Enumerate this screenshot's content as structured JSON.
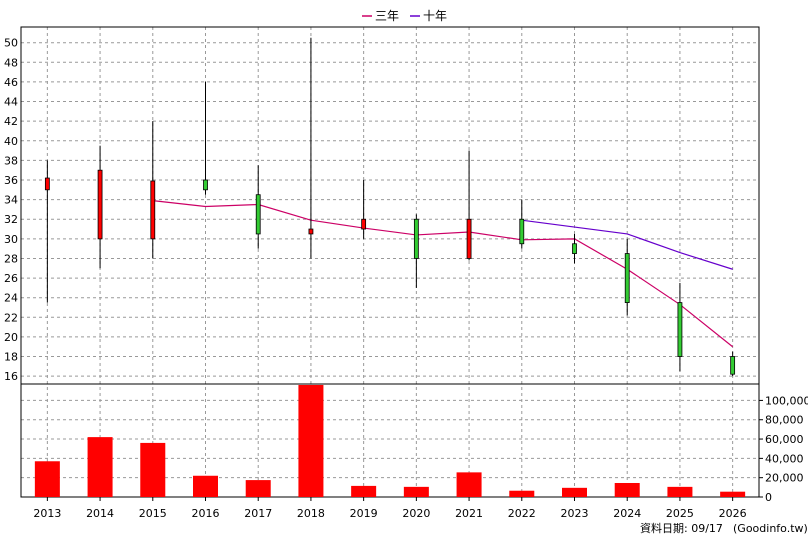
{
  "chart_data": {
    "type": "candlestick",
    "legend": [
      {
        "name": "三年",
        "color": "#cc0066"
      },
      {
        "name": "十年",
        "color": "#6600cc"
      }
    ],
    "legend_position": "top-center",
    "categories": [
      "2013",
      "2014",
      "2015",
      "2016",
      "2017",
      "2018",
      "2019",
      "2020",
      "2021",
      "2022",
      "2023",
      "2024",
      "2025",
      "2026"
    ],
    "price_axis": {
      "ticks": [
        16,
        18,
        20,
        22,
        24,
        26,
        28,
        30,
        32,
        34,
        36,
        38,
        40,
        42,
        44,
        46,
        48,
        50
      ],
      "range": [
        15.2,
        51.6
      ]
    },
    "volume_axis": {
      "ticks": [
        0,
        20000,
        40000,
        60000,
        80000,
        100000
      ],
      "tick_labels": [
        "0",
        "20,000",
        "40,000",
        "60,000",
        "80,000",
        "100,000"
      ],
      "range": [
        0,
        117000
      ]
    },
    "grid": true,
    "up_color": "#33cc33",
    "down_color": "#ff0000",
    "candles": [
      {
        "year": "2013",
        "open": 35.0,
        "close": 36.2,
        "high": 38.0,
        "low": 23.5
      },
      {
        "year": "2014",
        "open": 30.0,
        "close": 37.0,
        "high": 39.5,
        "low": 27.0
      },
      {
        "year": "2015",
        "open": 30.0,
        "close": 35.9,
        "high": 42.0,
        "low": 28.0
      },
      {
        "year": "2016",
        "open": 36.0,
        "close": 35.0,
        "high": 46.0,
        "low": 34.5
      },
      {
        "year": "2017",
        "open": 34.5,
        "close": 30.5,
        "high": 37.5,
        "low": 29.0
      },
      {
        "year": "2018",
        "open": 30.5,
        "close": 31.0,
        "high": 50.5,
        "low": 28.0
      },
      {
        "year": "2019",
        "open": 31.0,
        "close": 32.0,
        "high": 36.0,
        "low": 30.0
      },
      {
        "year": "2020",
        "open": 32.0,
        "close": 28.0,
        "high": 32.5,
        "low": 25.0
      },
      {
        "year": "2021",
        "open": 28.0,
        "close": 32.0,
        "high": 39.0,
        "low": 27.8
      },
      {
        "year": "2022",
        "open": 32.0,
        "close": 29.5,
        "high": 34.0,
        "low": 29.0
      },
      {
        "year": "2023",
        "open": 29.5,
        "close": 28.5,
        "high": 30.5,
        "low": 27.5
      },
      {
        "year": "2024",
        "open": 28.5,
        "close": 23.5,
        "high": 30.0,
        "low": 22.2
      },
      {
        "year": "2025",
        "open": 23.5,
        "close": 18.0,
        "high": 25.5,
        "low": 16.5
      },
      {
        "year": "2026",
        "open": 18.0,
        "close": 16.2,
        "high": 18.5,
        "low": 16.0
      }
    ],
    "volumes": [
      37000,
      62000,
      56000,
      22000,
      17500,
      116000,
      11500,
      10500,
      25500,
      6500,
      9500,
      14500,
      10500,
      5500
    ],
    "ma_3yr": {
      "name": "三年",
      "start_index": 2,
      "values": [
        33.9,
        33.3,
        33.5,
        31.9,
        31.1,
        30.4,
        30.7,
        29.9,
        30.0,
        26.9,
        23.3,
        19.0
      ]
    },
    "ma_10yr": {
      "name": "十年",
      "start_index": 9,
      "values": [
        31.9,
        31.2,
        30.5,
        28.6,
        26.9
      ]
    }
  },
  "footer": {
    "date_text": "資料日期: 09/17",
    "source_text": "(Goodinfo.tw)"
  }
}
